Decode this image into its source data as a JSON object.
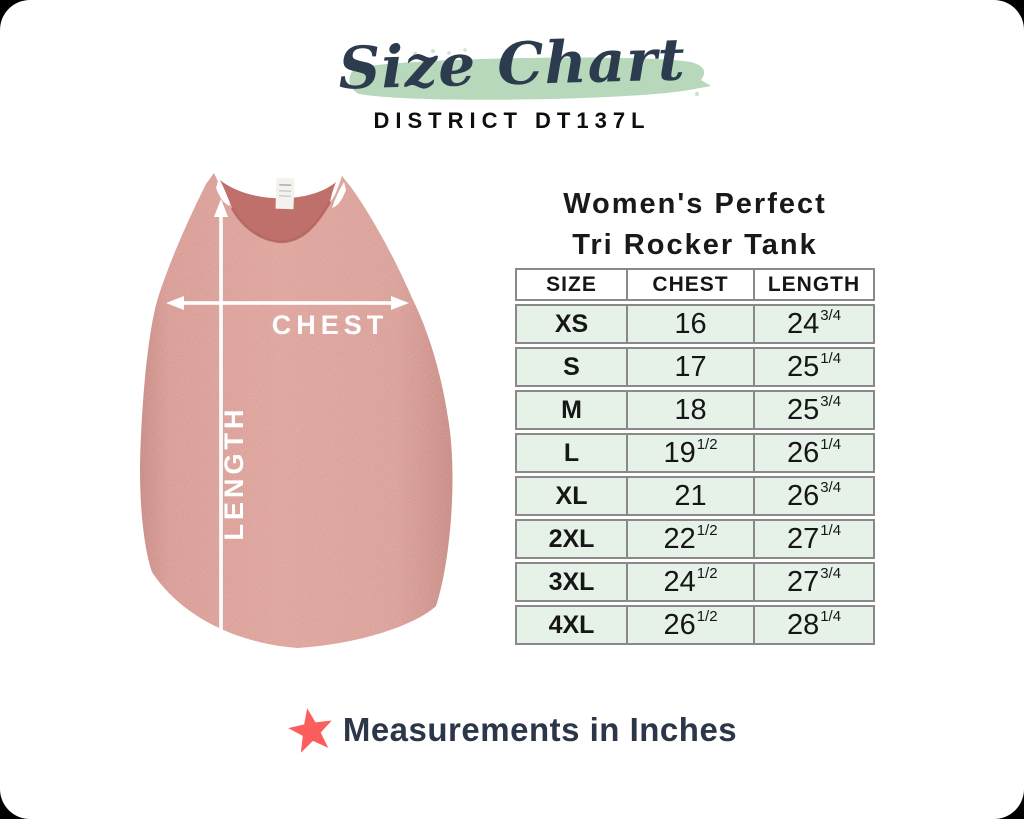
{
  "header": {
    "title": "Size Chart",
    "subtitle": "DISTRICT DT137L"
  },
  "product": {
    "name_line1": "Women's Perfect",
    "name_line2": "Tri Rocker Tank"
  },
  "diagram": {
    "chest_label": "CHEST",
    "length_label": "LENGTH"
  },
  "footer": {
    "note": "Measurements in Inches"
  },
  "colors": {
    "brush_green": "#b7d8bb",
    "table_row_green": "#e6f2e8",
    "table_border_gray": "#898989",
    "tank_pink": "#cf867e",
    "star_coral": "#fc5d5d",
    "navy_text": "#2b3648"
  },
  "chart_data": {
    "type": "table",
    "title": "Size Chart",
    "subtitle": "DISTRICT DT137L",
    "product": "Women's Perfect Tri Rocker Tank",
    "units": "inches",
    "columns": [
      "SIZE",
      "CHEST",
      "LENGTH"
    ],
    "rows": [
      [
        "XS",
        "16",
        "24 3/4"
      ],
      [
        "S",
        "17",
        "25 1/4"
      ],
      [
        "M",
        "18",
        "25 3/4"
      ],
      [
        "L",
        "19 1/2",
        "26 1/4"
      ],
      [
        "XL",
        "21",
        "26 3/4"
      ],
      [
        "2XL",
        "22 1/2",
        "27 1/4"
      ],
      [
        "3XL",
        "24 1/2",
        "27 3/4"
      ],
      [
        "4XL",
        "26 1/2",
        "28 1/4"
      ]
    ]
  }
}
